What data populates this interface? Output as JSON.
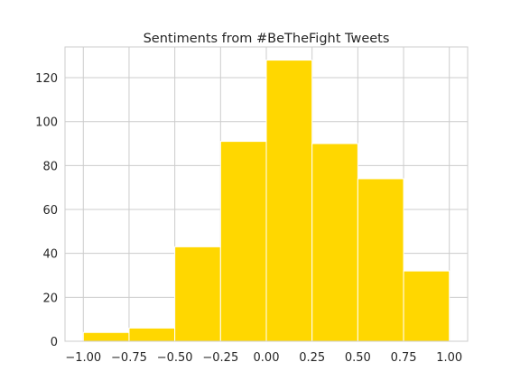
{
  "chart_data": {
    "type": "bar",
    "title": "Sentiments from #BeTheFight Tweets",
    "xlabel": "",
    "ylabel": "",
    "bin_edges": [
      -1.0,
      -0.75,
      -0.5,
      -0.25,
      0.0,
      0.25,
      0.5,
      0.75,
      1.0
    ],
    "values": [
      4,
      6,
      43,
      91,
      128,
      90,
      74,
      32
    ],
    "xlim": [
      -1.1,
      1.1
    ],
    "ylim": [
      0,
      134
    ],
    "xticks": [
      "-1.00",
      "-0.75",
      "-0.50",
      "-0.25",
      "0.00",
      "0.25",
      "0.50",
      "0.75",
      "1.00"
    ],
    "yticks": [
      "0",
      "20",
      "40",
      "60",
      "80",
      "100",
      "120"
    ],
    "grid": true,
    "bar_color": "#ffd700"
  }
}
